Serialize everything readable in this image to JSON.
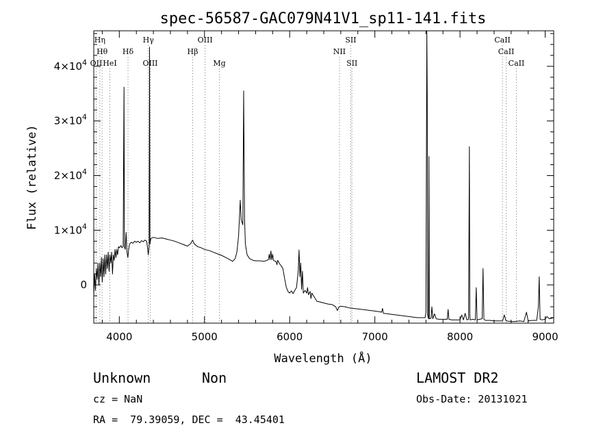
{
  "chart_data": {
    "type": "line",
    "title": "spec-56587-GAC079N41V1_sp11-141.fits",
    "xlabel": "Wavelength (Å)",
    "ylabel": "Flux (relative)",
    "xlim": [
      3700,
      9100
    ],
    "ylim": [
      -7000,
      46500
    ],
    "x_ticks": [
      4000,
      5000,
      6000,
      7000,
      8000,
      9000
    ],
    "x_tick_labels": [
      "4000",
      "5000",
      "6000",
      "7000",
      "8000",
      "9000"
    ],
    "y_ticks": [
      0,
      10000,
      20000,
      30000,
      40000
    ],
    "y_tick_labels": [
      {
        "mant": "0",
        "exp": ""
      },
      {
        "mant": "1×10",
        "exp": "4"
      },
      {
        "mant": "2×10",
        "exp": "4"
      },
      {
        "mant": "3×10",
        "exp": "4"
      },
      {
        "mant": "4×10",
        "exp": "4"
      }
    ],
    "grid": false,
    "series": [
      {
        "points": [
          [
            3700,
            -2000
          ],
          [
            3710,
            2000
          ],
          [
            3720,
            -1000
          ],
          [
            3730,
            3000
          ],
          [
            3740,
            1000
          ],
          [
            3750,
            4000
          ],
          [
            3760,
            0
          ],
          [
            3770,
            4000
          ],
          [
            3780,
            1500
          ],
          [
            3790,
            5000
          ],
          [
            3800,
            500
          ],
          [
            3810,
            4800
          ],
          [
            3820,
            1500
          ],
          [
            3830,
            5500
          ],
          [
            3840,
            2000
          ],
          [
            3850,
            5500
          ],
          [
            3860,
            3000
          ],
          [
            3870,
            6000
          ],
          [
            3880,
            2500
          ],
          [
            3890,
            5500
          ],
          [
            3900,
            4000
          ],
          [
            3910,
            6000
          ],
          [
            3920,
            2000
          ],
          [
            3930,
            5500
          ],
          [
            3940,
            4500
          ],
          [
            3950,
            6500
          ],
          [
            3960,
            5000
          ],
          [
            3970,
            6500
          ],
          [
            3980,
            5500
          ],
          [
            3990,
            7000
          ],
          [
            4000,
            6800
          ],
          [
            4020,
            7200
          ],
          [
            4030,
            6800
          ],
          [
            4045,
            7000
          ],
          [
            4055,
            36200
          ],
          [
            4060,
            7000
          ],
          [
            4070,
            6500
          ],
          [
            4080,
            9600
          ],
          [
            4090,
            6000
          ],
          [
            4100,
            5000
          ],
          [
            4110,
            6500
          ],
          [
            4120,
            7500
          ],
          [
            4140,
            7800
          ],
          [
            4160,
            7600
          ],
          [
            4180,
            8000
          ],
          [
            4200,
            7800
          ],
          [
            4220,
            8000
          ],
          [
            4240,
            7700
          ],
          [
            4260,
            8100
          ],
          [
            4280,
            7900
          ],
          [
            4300,
            8200
          ],
          [
            4320,
            8000
          ],
          [
            4330,
            7000
          ],
          [
            4340,
            5500
          ],
          [
            4350,
            7000
          ],
          [
            4355,
            43500
          ],
          [
            4360,
            7500
          ],
          [
            4370,
            8500
          ],
          [
            4400,
            8700
          ],
          [
            4450,
            8500
          ],
          [
            4500,
            8600
          ],
          [
            4550,
            8400
          ],
          [
            4600,
            8200
          ],
          [
            4650,
            8000
          ],
          [
            4700,
            7700
          ],
          [
            4750,
            7400
          ],
          [
            4800,
            7100
          ],
          [
            4840,
            7600
          ],
          [
            4860,
            8200
          ],
          [
            4880,
            7500
          ],
          [
            4920,
            7000
          ],
          [
            4960,
            6800
          ],
          [
            5000,
            6500
          ],
          [
            5050,
            6300
          ],
          [
            5100,
            6000
          ],
          [
            5150,
            5700
          ],
          [
            5200,
            5400
          ],
          [
            5250,
            5000
          ],
          [
            5300,
            4600
          ],
          [
            5330,
            4300
          ],
          [
            5360,
            4800
          ],
          [
            5380,
            6000
          ],
          [
            5400,
            9000
          ],
          [
            5420,
            15500
          ],
          [
            5430,
            12000
          ],
          [
            5450,
            11000
          ],
          [
            5460,
            35500
          ],
          [
            5470,
            12000
          ],
          [
            5480,
            7500
          ],
          [
            5500,
            5500
          ],
          [
            5530,
            4800
          ],
          [
            5570,
            4500
          ],
          [
            5600,
            4400
          ],
          [
            5650,
            4400
          ],
          [
            5700,
            4300
          ],
          [
            5750,
            4600
          ],
          [
            5760,
            5600
          ],
          [
            5770,
            4600
          ],
          [
            5780,
            6200
          ],
          [
            5790,
            4600
          ],
          [
            5800,
            5600
          ],
          [
            5810,
            4500
          ],
          [
            5820,
            4400
          ],
          [
            5840,
            4300
          ],
          [
            5850,
            3700
          ],
          [
            5860,
            4500
          ],
          [
            5880,
            3900
          ],
          [
            5900,
            3500
          ],
          [
            5920,
            3000
          ],
          [
            5940,
            1200
          ],
          [
            5960,
            -400
          ],
          [
            5980,
            -1200
          ],
          [
            6000,
            -1500
          ],
          [
            6020,
            -1100
          ],
          [
            6040,
            -1600
          ],
          [
            6060,
            -1000
          ],
          [
            6080,
            -500
          ],
          [
            6100,
            2500
          ],
          [
            6110,
            6400
          ],
          [
            6120,
            1500
          ],
          [
            6130,
            4000
          ],
          [
            6140,
            -800
          ],
          [
            6150,
            2500
          ],
          [
            6160,
            -1500
          ],
          [
            6180,
            -1000
          ],
          [
            6200,
            -1500
          ],
          [
            6210,
            -500
          ],
          [
            6220,
            -1800
          ],
          [
            6240,
            -1200
          ],
          [
            6250,
            -2500
          ],
          [
            6260,
            -1500
          ],
          [
            6280,
            -2000
          ],
          [
            6300,
            -2500
          ],
          [
            6320,
            -3000
          ],
          [
            6350,
            -3100
          ],
          [
            6400,
            -3300
          ],
          [
            6450,
            -3500
          ],
          [
            6500,
            -3600
          ],
          [
            6540,
            -4000
          ],
          [
            6560,
            -4700
          ],
          [
            6580,
            -4000
          ],
          [
            6600,
            -3900
          ],
          [
            6650,
            -4000
          ],
          [
            6700,
            -4200
          ],
          [
            6750,
            -4300
          ],
          [
            6800,
            -4400
          ],
          [
            6850,
            -4500
          ],
          [
            6900,
            -4600
          ],
          [
            6950,
            -4700
          ],
          [
            7000,
            -4800
          ],
          [
            7050,
            -4900
          ],
          [
            7080,
            -5000
          ],
          [
            7090,
            -4300
          ],
          [
            7100,
            -5200
          ],
          [
            7150,
            -5300
          ],
          [
            7200,
            -5400
          ],
          [
            7250,
            -5500
          ],
          [
            7300,
            -5600
          ],
          [
            7350,
            -5700
          ],
          [
            7400,
            -5800
          ],
          [
            7450,
            -5900
          ],
          [
            7500,
            -6000
          ],
          [
            7550,
            -6000
          ],
          [
            7590,
            -6000
          ],
          [
            7600,
            -5000
          ],
          [
            7610,
            46500
          ],
          [
            7615,
            35000
          ],
          [
            7620,
            -5500
          ],
          [
            7630,
            -6200
          ],
          [
            7635,
            23500
          ],
          [
            7640,
            -6200
          ],
          [
            7660,
            -6100
          ],
          [
            7670,
            -4000
          ],
          [
            7680,
            -6200
          ],
          [
            7700,
            -5300
          ],
          [
            7720,
            -6200
          ],
          [
            7750,
            -6300
          ],
          [
            7800,
            -6300
          ],
          [
            7850,
            -6300
          ],
          [
            7860,
            -4500
          ],
          [
            7870,
            -6300
          ],
          [
            7900,
            -6400
          ],
          [
            7950,
            -6400
          ],
          [
            8000,
            -6400
          ],
          [
            8020,
            -5500
          ],
          [
            8040,
            -6400
          ],
          [
            8060,
            -5200
          ],
          [
            8080,
            -6400
          ],
          [
            8100,
            -6300
          ],
          [
            8110,
            25300
          ],
          [
            8115,
            -5500
          ],
          [
            8120,
            -6400
          ],
          [
            8150,
            -6300
          ],
          [
            8180,
            -6400
          ],
          [
            8190,
            -500
          ],
          [
            8200,
            -6400
          ],
          [
            8230,
            -6300
          ],
          [
            8260,
            -6200
          ],
          [
            8270,
            3000
          ],
          [
            8280,
            -6300
          ],
          [
            8300,
            -6500
          ],
          [
            8350,
            -6500
          ],
          [
            8400,
            -6600
          ],
          [
            8450,
            -6600
          ],
          [
            8500,
            -6600
          ],
          [
            8520,
            -5500
          ],
          [
            8540,
            -6600
          ],
          [
            8600,
            -6700
          ],
          [
            8650,
            -6700
          ],
          [
            8700,
            -6600
          ],
          [
            8750,
            -6700
          ],
          [
            8780,
            -5000
          ],
          [
            8800,
            -6600
          ],
          [
            8850,
            -6500
          ],
          [
            8900,
            -6500
          ],
          [
            8920,
            -4000
          ],
          [
            8930,
            1500
          ],
          [
            8940,
            -6300
          ],
          [
            8960,
            -6400
          ],
          [
            9000,
            -6300
          ],
          [
            9020,
            -5800
          ],
          [
            9050,
            -6200
          ],
          [
            9100,
            -6000
          ]
        ]
      }
    ],
    "line_marks": [
      {
        "w": 3728,
        "label": "OII",
        "row": 3
      },
      {
        "w": 3771,
        "label": "Hη",
        "row": 1
      },
      {
        "w": 3798,
        "label": "Hθ",
        "row": 2
      },
      {
        "w": 3889,
        "label": "HeI",
        "row": 3
      },
      {
        "w": 4102,
        "label": "Hδ",
        "row": 2
      },
      {
        "w": 4341,
        "label": "Hγ",
        "row": 1
      },
      {
        "w": 4363,
        "label": "OIII",
        "row": 3
      },
      {
        "w": 4861,
        "label": "Hβ",
        "row": 2
      },
      {
        "w": 5007,
        "label": "OIII",
        "row": 1
      },
      {
        "w": 5175,
        "label": "Mg",
        "row": 3
      },
      {
        "w": 6584,
        "label": "NII",
        "row": 2
      },
      {
        "w": 6717,
        "label": "SII",
        "row": 1
      },
      {
        "w": 6731,
        "label": "SII",
        "row": 3
      },
      {
        "w": 8498,
        "label": "CaII",
        "row": 1
      },
      {
        "w": 8542,
        "label": "CaII",
        "row": 2
      },
      {
        "w": 8662,
        "label": "CaII",
        "row": 3
      }
    ]
  },
  "info": {
    "class": "Unknown",
    "subclass": "Non",
    "cz": "cz = NaN",
    "coords": "RA =  79.39059, DEC =  43.45401",
    "survey": "LAMOST DR2",
    "obsdate": "Obs-Date: 20131021"
  }
}
